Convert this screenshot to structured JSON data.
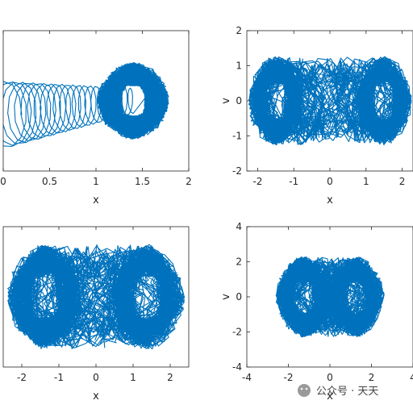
{
  "chart_data": [
    {
      "type": "line",
      "xlabel": "x",
      "ylabel": "",
      "xlim": [
        0,
        2
      ],
      "ylim": [
        -2,
        2
      ],
      "xticks": [
        "0",
        "0.5",
        "1",
        "1.5",
        "2"
      ],
      "yticks": [],
      "color": "#0072BD",
      "attractor": {
        "centers": [
          1.4
        ],
        "radius_x": 0.35,
        "radius_y": 0.95,
        "transient_start": [
          0.0,
          -0.4
        ]
      }
    },
    {
      "type": "line",
      "xlabel": "x",
      "ylabel": "v",
      "xlim": [
        -2.3,
        2.3
      ],
      "ylim": [
        -2,
        2
      ],
      "xticks": [
        "-2",
        "-1",
        "0",
        "1",
        "2"
      ],
      "yticks": [
        "2",
        "1",
        "0",
        "-1",
        "-2"
      ],
      "color": "#0072BD",
      "attractor": {
        "centers": [
          -1.5,
          1.5
        ],
        "radius_x": 0.7,
        "radius_y": 1.1
      }
    },
    {
      "type": "line",
      "xlabel": "x",
      "ylabel": "",
      "xlim": [
        -2.5,
        2.5
      ],
      "ylim": [
        -2,
        2
      ],
      "xticks": [
        "-2",
        "-1",
        "0",
        "1",
        "2"
      ],
      "yticks": [],
      "color": "#0072BD",
      "attractor": {
        "centers": [
          -1.4,
          1.4
        ],
        "radius_x": 0.9,
        "radius_y": 1.3
      }
    },
    {
      "type": "line",
      "xlabel": "x",
      "ylabel": "v",
      "xlim": [
        -4,
        4
      ],
      "ylim": [
        -4,
        4
      ],
      "xticks": [
        "-4",
        "-2",
        "0",
        "2",
        "4"
      ],
      "yticks": [
        "4",
        "2",
        "0",
        "-2",
        "-4"
      ],
      "color": "#0072BD",
      "attractor": {
        "centers": [
          -1.3,
          1.3
        ],
        "radius_x": 1.2,
        "radius_y": 2.0
      }
    }
  ],
  "watermark": "公众号 · 天天"
}
